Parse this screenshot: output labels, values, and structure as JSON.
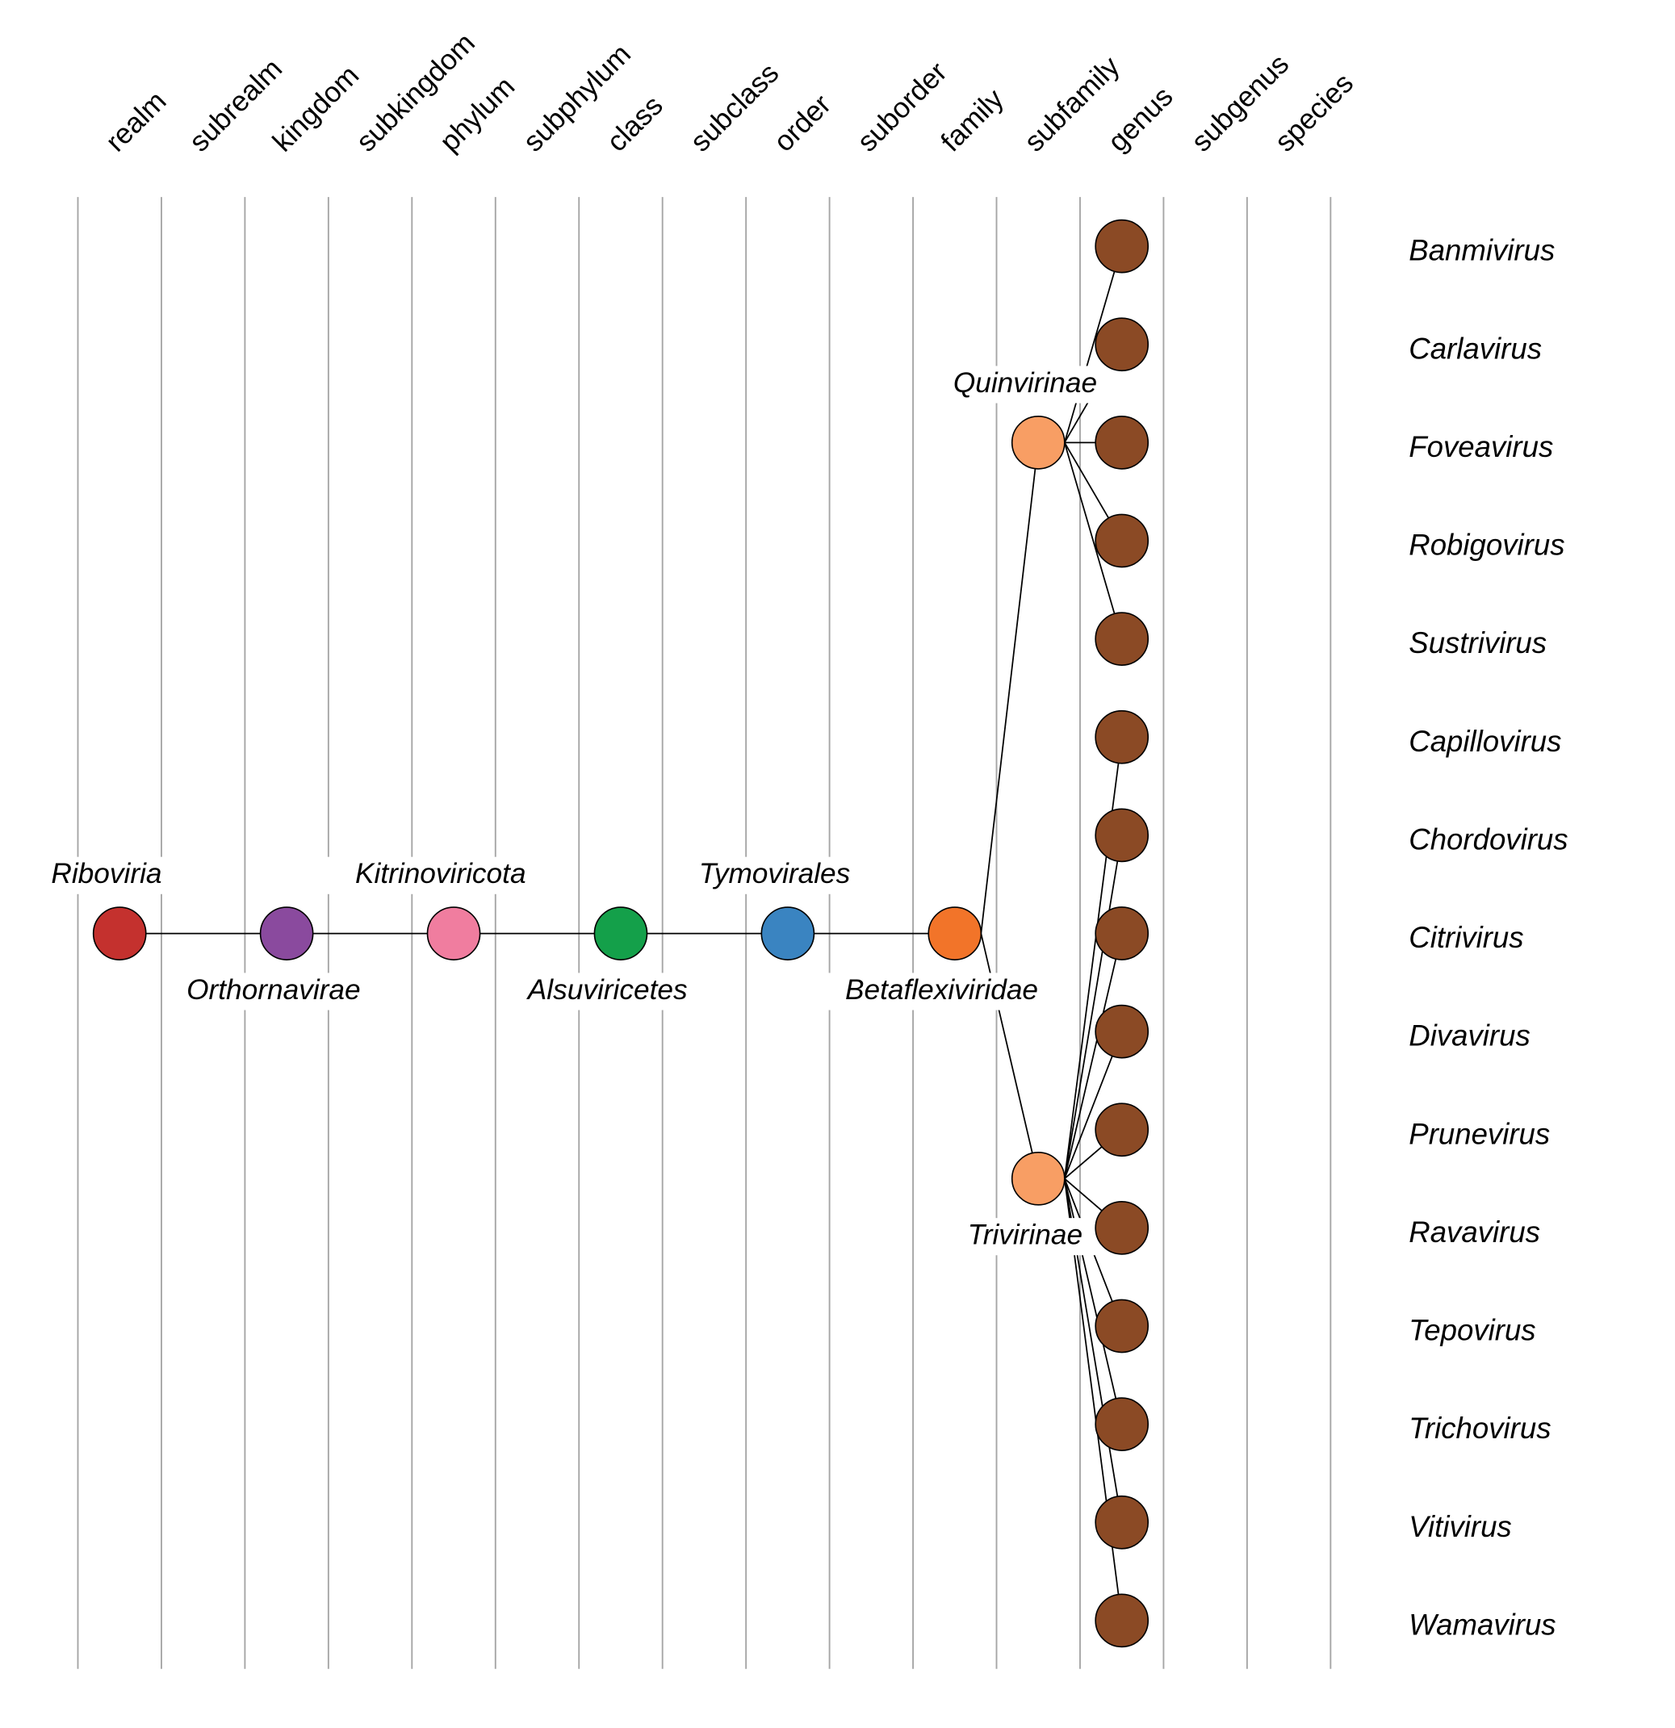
{
  "ranks": [
    "realm",
    "subrealm",
    "kingdom",
    "subkingdom",
    "phylum",
    "subphylum",
    "class",
    "subclass",
    "order",
    "suborder",
    "family",
    "subfamily",
    "genus",
    "subgenus",
    "species"
  ],
  "nodes": [
    {
      "name": "Riboviria",
      "rank": "realm",
      "color": "#c4312e",
      "label_pos": "above"
    },
    {
      "name": "Orthornavirae",
      "rank": "kingdom",
      "color": "#8a4a9e",
      "label_pos": "below",
      "parent": "Riboviria"
    },
    {
      "name": "Kitrinoviricota",
      "rank": "phylum",
      "color": "#f07d9f",
      "label_pos": "above",
      "parent": "Orthornavirae"
    },
    {
      "name": "Alsuviricetes",
      "rank": "class",
      "color": "#14a04a",
      "label_pos": "below",
      "parent": "Kitrinoviricota"
    },
    {
      "name": "Tymovirales",
      "rank": "order",
      "color": "#3a84c1",
      "label_pos": "above",
      "parent": "Alsuviricetes"
    },
    {
      "name": "Betaflexiviridae",
      "rank": "family",
      "color": "#f27429",
      "label_pos": "below",
      "parent": "Tymovirales"
    },
    {
      "name": "Quinvirinae",
      "rank": "subfamily",
      "color": "#f89e64",
      "label_pos": "above",
      "parent": "Betaflexiviridae"
    },
    {
      "name": "Trivirinae",
      "rank": "subfamily",
      "color": "#f89e64",
      "label_pos": "below",
      "parent": "Betaflexiviridae"
    }
  ],
  "genus_color": "#8b4a25",
  "genera": [
    {
      "name": "Banmivirus",
      "parent": "Quinvirinae"
    },
    {
      "name": "Carlavirus",
      "parent": "Quinvirinae"
    },
    {
      "name": "Foveavirus",
      "parent": "Quinvirinae"
    },
    {
      "name": "Robigovirus",
      "parent": "Quinvirinae"
    },
    {
      "name": "Sustrivirus",
      "parent": "Quinvirinae"
    },
    {
      "name": "Capillovirus",
      "parent": "Trivirinae"
    },
    {
      "name": "Chordovirus",
      "parent": "Trivirinae"
    },
    {
      "name": "Citrivirus",
      "parent": "Trivirinae"
    },
    {
      "name": "Divavirus",
      "parent": "Trivirinae"
    },
    {
      "name": "Prunevirus",
      "parent": "Trivirinae"
    },
    {
      "name": "Ravavirus",
      "parent": "Trivirinae"
    },
    {
      "name": "Tepovirus",
      "parent": "Trivirinae"
    },
    {
      "name": "Trichovirus",
      "parent": "Trivirinae"
    },
    {
      "name": "Vitivirus",
      "parent": "Trivirinae"
    },
    {
      "name": "Wamavirus",
      "parent": "Trivirinae"
    }
  ]
}
